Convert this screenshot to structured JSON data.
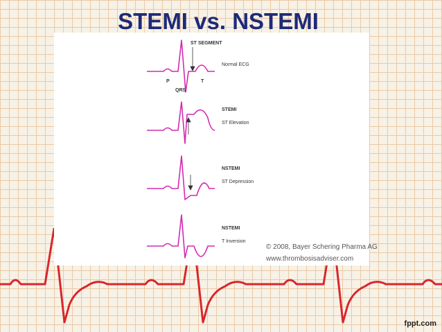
{
  "slide": {
    "title": "STEMI vs. NSTEMI",
    "footer": "fppt.com"
  },
  "figure": {
    "panels": [
      {
        "name": "Normal ECG",
        "labels": {
          "segment": "ST SEGMENT",
          "p": "P",
          "t": "T",
          "qrs": "QRS"
        }
      },
      {
        "name": "STEMI",
        "description": "ST Elevation"
      },
      {
        "name": "NSTEMI",
        "description": "ST Depression"
      },
      {
        "name": "NSTEMI",
        "description": "T Inversion"
      }
    ],
    "credit": [
      "© 2008, Bayer Schering Pharma AG",
      "www.thrombosisadviser.com"
    ]
  }
}
